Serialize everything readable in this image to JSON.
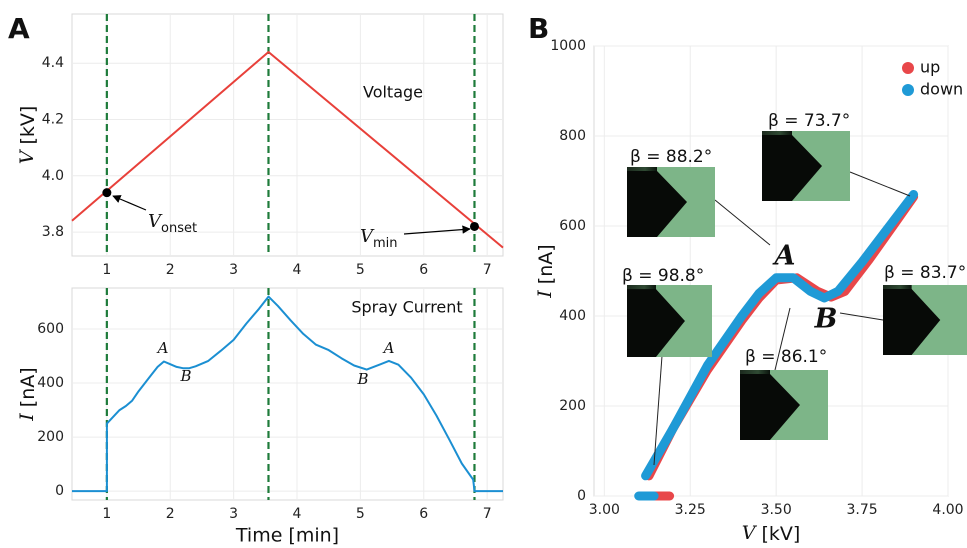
{
  "panel_labels": [
    "A",
    "B"
  ],
  "chart_data": [
    {
      "type": "line",
      "x": [
        0.45,
        3.55,
        7.25
      ],
      "series": [
        {
          "color": "#e8403a",
          "values": [
            3.84,
            4.44,
            3.745
          ]
        }
      ],
      "points": {
        "x": [
          1,
          6.8
        ],
        "values": [
          3.94,
          3.82
        ],
        "color": "#000000"
      },
      "point_labels": [
        {
          "symbol": "V",
          "sub": "onset"
        },
        {
          "symbol": "V",
          "sub": "min"
        }
      ],
      "annotations": [
        "Voltage"
      ],
      "vlines": [
        1,
        3.55,
        6.8
      ],
      "vline_color": "#1e7b3a",
      "xlim": [
        0.45,
        7.25
      ],
      "xticks": [
        1,
        2,
        3,
        4,
        5,
        6,
        7
      ],
      "ylim": [
        3.715,
        4.575
      ],
      "yticks": [
        3.8,
        {
          "value": 4.0,
          "label": "4.0"
        },
        4.2,
        4.4
      ],
      "ylabel": {
        "symbol": "V",
        "unit": "[kV]"
      },
      "grid": true
    },
    {
      "type": "line",
      "x": [
        0.45,
        1.0,
        1.0,
        1.1,
        1.2,
        1.3,
        1.4,
        1.5,
        1.6,
        1.7,
        1.8,
        1.9,
        2.0,
        2.1,
        2.2,
        2.3,
        2.4,
        2.6,
        2.8,
        3.0,
        3.2,
        3.4,
        3.55,
        3.7,
        3.9,
        4.1,
        4.3,
        4.5,
        4.7,
        4.9,
        5.1,
        5.3,
        5.45,
        5.6,
        5.8,
        6.0,
        6.2,
        6.4,
        6.6,
        6.78,
        6.8,
        7.25
      ],
      "series": [
        {
          "color": "#1b8fd2",
          "values": [
            0,
            0,
            250,
            275,
            300,
            315,
            335,
            370,
            400,
            430,
            460,
            480,
            470,
            460,
            455,
            455,
            462,
            482,
            520,
            560,
            620,
            675,
            720,
            685,
            632,
            582,
            542,
            522,
            492,
            465,
            450,
            468,
            482,
            468,
            420,
            358,
            280,
            192,
            102,
            42,
            0,
            0
          ]
        }
      ],
      "peak_labels": [
        "A",
        "B",
        "B",
        "A"
      ],
      "annotations": [
        "Spray Current"
      ],
      "vlines": [
        1,
        3.55,
        6.8
      ],
      "vline_color": "#1e7b3a",
      "xlim": [
        0.45,
        7.25
      ],
      "xticks": [
        1,
        2,
        3,
        4,
        5,
        6,
        7
      ],
      "ylim": [
        -33,
        752
      ],
      "yticks": [
        0,
        200,
        400,
        600
      ],
      "xlabel": "Time [min]",
      "ylabel": {
        "symbol": "I",
        "unit": "[nA]"
      },
      "grid": true
    },
    {
      "type": "scatter",
      "series": [
        {
          "name": "up",
          "color": "#e8474a",
          "x": [
            3.145,
            3.19,
            null,
            3.13,
            3.2,
            3.3,
            3.4,
            3.45,
            3.5,
            3.56,
            3.62,
            3.66,
            3.7,
            3.77,
            3.84,
            3.9
          ],
          "values": [
            0,
            0,
            null,
            45,
            150,
            280,
            390,
            440,
            480,
            485,
            455,
            442,
            455,
            525,
            600,
            665
          ]
        },
        {
          "name": "down",
          "color": "#1f9ad6",
          "x": [
            3.1,
            3.145,
            null,
            3.12,
            3.2,
            3.3,
            3.4,
            3.45,
            3.5,
            3.55,
            3.6,
            3.64,
            3.68,
            3.75,
            3.82,
            3.9
          ],
          "values": [
            0,
            0,
            null,
            45,
            150,
            290,
            400,
            450,
            485,
            485,
            455,
            440,
            455,
            520,
            590,
            670
          ]
        }
      ],
      "insets": [
        "β = 88.2°",
        "β = 73.7°",
        "β = 98.8°",
        "β = 86.1°",
        "β = 83.7°"
      ],
      "region_labels": [
        "A",
        "B"
      ],
      "xlim": [
        2.97,
        4.0
      ],
      "xticks": [
        {
          "value": 3.0,
          "label": "3.00"
        },
        {
          "value": 3.25,
          "label": "3.25"
        },
        {
          "value": 3.5,
          "label": "3.50"
        },
        3.75,
        {
          "value": 4.0,
          "label": "4.00"
        }
      ],
      "ylim": [
        0,
        1000
      ],
      "yticks": [
        0,
        200,
        400,
        600,
        800,
        1000
      ],
      "xlabel": {
        "symbol": "V",
        "unit": "[kV]"
      },
      "ylabel": {
        "symbol": "I",
        "unit": "[nA]"
      },
      "legend": "top-right",
      "grid": true
    }
  ]
}
